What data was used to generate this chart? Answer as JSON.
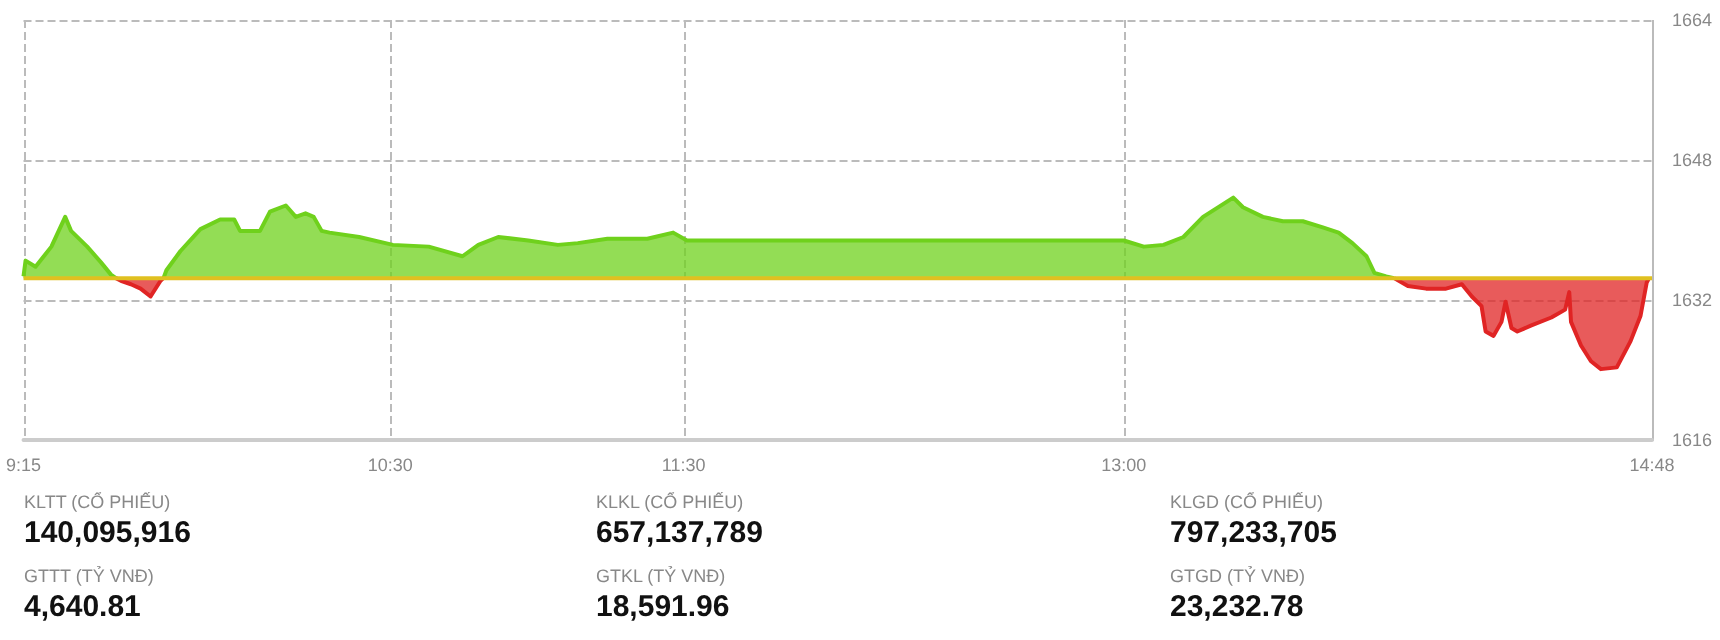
{
  "chart_data": [
    {
      "type": "area",
      "x": [
        9.25,
        9.257,
        9.291,
        9.345,
        9.392,
        9.412,
        9.467,
        9.514,
        9.548,
        9.565,
        9.582,
        9.616,
        9.649,
        9.683,
        9.717,
        9.727,
        9.737,
        9.785,
        9.853,
        9.92,
        9.968,
        9.988,
        10.056,
        10.09,
        10.144,
        10.178,
        10.211,
        10.239,
        10.266,
        10.293,
        10.394,
        10.509,
        10.631,
        10.746,
        10.8,
        10.868,
        10.97,
        11.071,
        11.139,
        11.24,
        11.376,
        11.464,
        11.511,
        13.0,
        13.068,
        13.135,
        13.203,
        13.27,
        13.373,
        13.406,
        13.474,
        13.542,
        13.61,
        13.678,
        13.732,
        13.779,
        13.827,
        13.854,
        13.894,
        13.921,
        13.968,
        14.03,
        14.098,
        14.152,
        14.186,
        14.219,
        14.233,
        14.26,
        14.287,
        14.301,
        14.321,
        14.341,
        14.389,
        14.457,
        14.504,
        14.518,
        14.524,
        14.558,
        14.592,
        14.626,
        14.68,
        14.727,
        14.761,
        14.782,
        14.79
      ],
      "series": [
        {
          "color": "#6fd11c",
          "values": [
            1634.7,
            1636.5,
            1635.8,
            1638.1,
            1641.5,
            1639.9,
            1638.1,
            1636.3,
            1634.9,
            1634.5,
            null,
            null,
            null,
            null,
            null,
            1634.5,
            1635.4,
            1637.6,
            1640.1,
            1641.2,
            1641.2,
            1639.9,
            1639.9,
            1642.1,
            1642.8,
            1641.5,
            1641.9,
            1641.5,
            1639.9,
            1639.7,
            1639.2,
            1638.3,
            1638.1,
            1637.0,
            1638.3,
            1639.2,
            1638.8,
            1638.3,
            1638.5,
            1639.0,
            1639.0,
            1639.7,
            1638.8,
            1638.8,
            1638.1,
            1638.3,
            1639.2,
            1641.5,
            1643.7,
            1642.6,
            1641.5,
            1641.0,
            1641.0,
            1640.3,
            1639.7,
            1638.5,
            1637.0,
            1635.1,
            1634.7,
            1634.5,
            null,
            null,
            null,
            null,
            null,
            null,
            null,
            null,
            null,
            null,
            null,
            null,
            null,
            null,
            null,
            null,
            null,
            null,
            null,
            null,
            null,
            null,
            null,
            null,
            null
          ]
        },
        {
          "color": "#e02424",
          "values": [
            null,
            null,
            null,
            null,
            null,
            null,
            null,
            null,
            null,
            1634.5,
            1634.2,
            1633.8,
            1633.3,
            1632.4,
            1634.2,
            1634.5,
            null,
            null,
            null,
            null,
            null,
            null,
            null,
            null,
            null,
            null,
            null,
            null,
            null,
            null,
            null,
            null,
            null,
            null,
            null,
            null,
            null,
            null,
            null,
            null,
            null,
            null,
            null,
            null,
            null,
            null,
            null,
            null,
            null,
            null,
            null,
            null,
            null,
            null,
            null,
            null,
            null,
            null,
            null,
            1634.5,
            1633.6,
            1633.3,
            1633.3,
            1633.8,
            1632.4,
            1631.3,
            1628.4,
            1627.9,
            1629.5,
            1631.8,
            1628.8,
            1628.4,
            1629.1,
            1630.0,
            1630.9,
            1632.9,
            1629.5,
            1626.8,
            1625.0,
            1624.1,
            1624.3,
            1627.3,
            1630.2,
            1634.0,
            1634.5
          ]
        }
      ],
      "xlim": [
        9.25,
        14.8
      ],
      "xticks": [
        {
          "value": 9.25,
          "label": "9:15"
        },
        {
          "value": 10.5,
          "label": "10:30"
        },
        {
          "value": 11.5,
          "label": "11:30"
        },
        {
          "value": 13,
          "label": "13:00"
        },
        {
          "value": 14.8,
          "label": "14:48"
        }
      ],
      "ylim": [
        1616,
        1664
      ],
      "yticks": [
        1616,
        1632,
        1648,
        1664
      ],
      "ref_lines": [
        {
          "axis": "y",
          "value": 1634.5,
          "color": "#e0c020"
        }
      ],
      "grid": true
    },
    {
      "type": "other",
      "annotations": [
        "KLTT (CỔ PHIẾU)",
        "140,095,916",
        "GTTT (TỶ VNĐ)",
        "4,640.81",
        "KLKL (CỔ PHIẾU)",
        "657,137,789",
        "GTKL (TỶ VNĐ)",
        "18,591.96",
        "KLGD (CỔ PHIẾU)",
        "797,233,705",
        "GTGD (TỶ VNĐ)",
        "23,232.78"
      ]
    }
  ]
}
